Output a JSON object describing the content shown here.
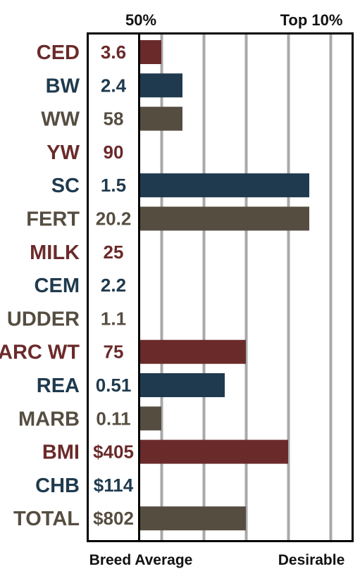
{
  "chart_data": {
    "type": "bar",
    "orientation": "horizontal",
    "top_labels": [
      "50%",
      "Top 10%"
    ],
    "bottom_labels": [
      "Breed Average",
      "Desirable"
    ],
    "xlim": [
      0,
      10
    ],
    "grid": true,
    "gridlines_at": [
      1,
      3,
      5,
      7,
      9
    ],
    "colors": {
      "maroon": "#6b2a2a",
      "navy": "#1f3a4e",
      "brown": "#564d41",
      "grid": "#a9a9a9",
      "frame": "#000000"
    },
    "rows": [
      {
        "trait": "CED",
        "value_label": "3.6",
        "bar": 1.0,
        "color": "maroon"
      },
      {
        "trait": "BW",
        "value_label": "2.4",
        "bar": 2.0,
        "color": "navy"
      },
      {
        "trait": "WW",
        "value_label": "58",
        "bar": 2.0,
        "color": "brown"
      },
      {
        "trait": "YW",
        "value_label": "90",
        "bar": 0,
        "color": "maroon"
      },
      {
        "trait": "SC",
        "value_label": "1.5",
        "bar": 8.0,
        "color": "navy"
      },
      {
        "trait": "FERT",
        "value_label": "20.2",
        "bar": 8.0,
        "color": "brown"
      },
      {
        "trait": "MILK",
        "value_label": "25",
        "bar": 0,
        "color": "maroon"
      },
      {
        "trait": "CEM",
        "value_label": "2.2",
        "bar": 0,
        "color": "navy"
      },
      {
        "trait": "UDDER",
        "value_label": "1.1",
        "bar": 0,
        "color": "brown"
      },
      {
        "trait": "CARC WT",
        "value_label": "75",
        "bar": 5.0,
        "color": "maroon"
      },
      {
        "trait": "REA",
        "value_label": "0.51",
        "bar": 4.0,
        "color": "navy"
      },
      {
        "trait": "MARB",
        "value_label": "0.11",
        "bar": 1.0,
        "color": "brown"
      },
      {
        "trait": "BMI",
        "value_label": "$405",
        "bar": 7.0,
        "color": "maroon"
      },
      {
        "trait": "CHB",
        "value_label": "$114",
        "bar": 0,
        "color": "navy"
      },
      {
        "trait": "TOTAL",
        "value_label": "$802",
        "bar": 5.0,
        "color": "brown"
      }
    ]
  }
}
